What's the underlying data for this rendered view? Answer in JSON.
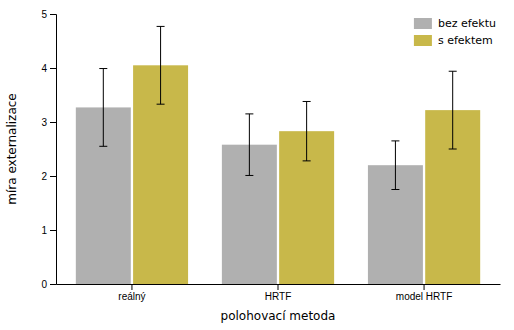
{
  "chart_data": {
    "type": "bar",
    "categories": [
      "reálný",
      "HRTF",
      "model HRTF"
    ],
    "series": [
      {
        "name": "bez efektu",
        "color": "#b0b0b0",
        "values": [
          3.27,
          2.58,
          2.2
        ],
        "errors": [
          0.72,
          0.57,
          0.45
        ]
      },
      {
        "name": "s efektem",
        "color": "#c8b84a",
        "values": [
          4.05,
          2.83,
          3.22
        ],
        "errors": [
          0.72,
          0.55,
          0.72
        ]
      }
    ],
    "xlabel": "polohovací metoda",
    "ylabel": "míra externalizace",
    "ylim": [
      0,
      5
    ],
    "yticks": [
      0,
      1,
      2,
      3,
      4,
      5
    ],
    "legend": "upper right",
    "grid": false
  }
}
